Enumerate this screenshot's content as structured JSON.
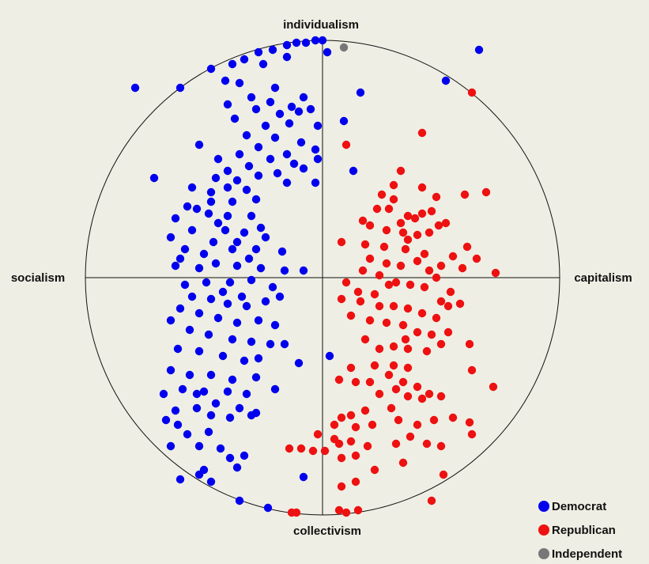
{
  "chart_data": {
    "type": "scatter",
    "title": "",
    "axes": {
      "top": "individualism",
      "bottom": "collectivism",
      "left": "socialism",
      "right": "capitalism"
    },
    "xlim": [
      -1,
      1
    ],
    "ylim": [
      -1,
      1
    ],
    "boundary": "unit-circle",
    "grid": false,
    "legend_position": "bottom-right",
    "series": [
      {
        "name": "Democrat",
        "color": "#0000ee",
        "points": [
          [
            0.0,
            1.0
          ],
          [
            -0.03,
            1.0
          ],
          [
            -0.07,
            0.99
          ],
          [
            -0.11,
            0.99
          ],
          [
            -0.15,
            0.98
          ],
          [
            -0.21,
            0.96
          ],
          [
            -0.27,
            0.95
          ],
          [
            -0.33,
            0.92
          ],
          [
            -0.38,
            0.9
          ],
          [
            -0.47,
            0.88
          ],
          [
            -0.6,
            0.8
          ],
          [
            -0.79,
            0.8
          ],
          [
            -0.15,
            0.93
          ],
          [
            -0.25,
            0.9
          ],
          [
            -0.41,
            0.83
          ],
          [
            0.02,
            0.95
          ],
          [
            0.66,
            0.96
          ],
          [
            0.52,
            0.83
          ],
          [
            0.16,
            0.78
          ],
          [
            0.09,
            0.66
          ],
          [
            -0.35,
            0.82
          ],
          [
            -0.2,
            0.8
          ],
          [
            -0.3,
            0.76
          ],
          [
            -0.22,
            0.74
          ],
          [
            -0.13,
            0.72
          ],
          [
            -0.08,
            0.76
          ],
          [
            -0.1,
            0.7
          ],
          [
            -0.18,
            0.69
          ],
          [
            -0.28,
            0.71
          ],
          [
            -0.4,
            0.73
          ],
          [
            -0.05,
            0.71
          ],
          [
            -0.02,
            0.64
          ],
          [
            -0.14,
            0.65
          ],
          [
            -0.24,
            0.64
          ],
          [
            -0.37,
            0.67
          ],
          [
            -0.32,
            0.6
          ],
          [
            -0.2,
            0.59
          ],
          [
            -0.09,
            0.57
          ],
          [
            -0.03,
            0.54
          ],
          [
            -0.27,
            0.55
          ],
          [
            -0.35,
            0.52
          ],
          [
            -0.44,
            0.5
          ],
          [
            -0.52,
            0.56
          ],
          [
            -0.15,
            0.52
          ],
          [
            -0.22,
            0.5
          ],
          [
            -0.31,
            0.47
          ],
          [
            -0.4,
            0.45
          ],
          [
            -0.12,
            0.48
          ],
          [
            -0.02,
            0.5
          ],
          [
            -0.08,
            0.46
          ],
          [
            -0.19,
            0.44
          ],
          [
            -0.27,
            0.43
          ],
          [
            -0.36,
            0.41
          ],
          [
            -0.45,
            0.42
          ],
          [
            -0.03,
            0.4
          ],
          [
            -0.15,
            0.4
          ],
          [
            0.13,
            0.45
          ],
          [
            -0.71,
            0.42
          ],
          [
            -0.55,
            0.38
          ],
          [
            -0.4,
            0.38
          ],
          [
            -0.32,
            0.37
          ],
          [
            -0.47,
            0.36
          ],
          [
            -0.28,
            0.33
          ],
          [
            -0.38,
            0.32
          ],
          [
            -0.47,
            0.32
          ],
          [
            -0.57,
            0.3
          ],
          [
            -0.62,
            0.25
          ],
          [
            -0.48,
            0.27
          ],
          [
            -0.4,
            0.26
          ],
          [
            -0.3,
            0.26
          ],
          [
            -0.55,
            0.2
          ],
          [
            -0.41,
            0.2
          ],
          [
            -0.33,
            0.19
          ],
          [
            -0.24,
            0.17
          ],
          [
            -0.46,
            0.15
          ],
          [
            -0.58,
            0.12
          ],
          [
            -0.5,
            0.1
          ],
          [
            -0.38,
            0.12
          ],
          [
            -0.28,
            0.12
          ],
          [
            -0.17,
            0.11
          ],
          [
            -0.62,
            0.05
          ],
          [
            -0.52,
            0.04
          ],
          [
            -0.45,
            0.06
          ],
          [
            -0.36,
            0.05
          ],
          [
            -0.26,
            0.04
          ],
          [
            -0.16,
            0.03
          ],
          [
            -0.08,
            0.03
          ],
          [
            -0.58,
            -0.03
          ],
          [
            -0.49,
            -0.02
          ],
          [
            -0.39,
            -0.02
          ],
          [
            -0.3,
            -0.01
          ],
          [
            -0.21,
            -0.04
          ],
          [
            -0.64,
            0.17
          ],
          [
            -0.6,
            0.08
          ],
          [
            -0.53,
            0.29
          ],
          [
            -0.44,
            0.23
          ],
          [
            -0.36,
            0.15
          ],
          [
            -0.31,
            0.08
          ],
          [
            -0.26,
            0.21
          ],
          [
            -0.42,
            -0.06
          ],
          [
            -0.34,
            -0.08
          ],
          [
            -0.55,
            -0.08
          ],
          [
            -0.47,
            -0.09
          ],
          [
            -0.4,
            -0.11
          ],
          [
            -0.32,
            -0.12
          ],
          [
            -0.24,
            -0.1
          ],
          [
            -0.18,
            -0.08
          ],
          [
            -0.6,
            -0.13
          ],
          [
            -0.52,
            -0.15
          ],
          [
            -0.44,
            -0.17
          ],
          [
            -0.36,
            -0.19
          ],
          [
            -0.27,
            -0.18
          ],
          [
            -0.2,
            -0.2
          ],
          [
            -0.64,
            -0.18
          ],
          [
            -0.56,
            -0.22
          ],
          [
            -0.48,
            -0.24
          ],
          [
            -0.38,
            -0.26
          ],
          [
            -0.3,
            -0.27
          ],
          [
            -0.22,
            -0.28
          ],
          [
            -0.61,
            -0.3
          ],
          [
            -0.52,
            -0.31
          ],
          [
            -0.42,
            -0.33
          ],
          [
            -0.33,
            -0.35
          ],
          [
            -0.27,
            -0.34
          ],
          [
            -0.64,
            -0.39
          ],
          [
            -0.56,
            -0.41
          ],
          [
            -0.47,
            -0.41
          ],
          [
            -0.38,
            -0.43
          ],
          [
            -0.28,
            -0.42
          ],
          [
            -0.59,
            -0.47
          ],
          [
            -0.5,
            -0.48
          ],
          [
            -0.4,
            -0.48
          ],
          [
            -0.32,
            -0.49
          ],
          [
            -0.2,
            -0.47
          ],
          [
            -0.1,
            -0.36
          ],
          [
            -0.16,
            -0.28
          ],
          [
            -0.62,
            -0.56
          ],
          [
            -0.53,
            -0.55
          ],
          [
            -0.45,
            -0.53
          ],
          [
            -0.35,
            -0.55
          ],
          [
            -0.57,
            -0.66
          ],
          [
            -0.48,
            -0.65
          ],
          [
            -0.39,
            -0.59
          ],
          [
            -0.67,
            -0.49
          ],
          [
            -0.61,
            -0.62
          ],
          [
            -0.52,
            -0.71
          ],
          [
            -0.43,
            -0.72
          ],
          [
            -0.66,
            -0.6
          ],
          [
            -0.64,
            -0.71
          ],
          [
            -0.52,
            -0.83
          ],
          [
            -0.47,
            -0.86
          ],
          [
            -0.39,
            -0.76
          ],
          [
            -0.36,
            -0.8
          ],
          [
            -0.33,
            -0.75
          ],
          [
            -0.6,
            -0.85
          ],
          [
            -0.5,
            -0.81
          ],
          [
            -0.35,
            -0.94
          ],
          [
            -0.23,
            -0.97
          ],
          [
            -0.08,
            -0.84
          ],
          [
            0.03,
            -0.33
          ],
          [
            -0.28,
            -0.57
          ],
          [
            -0.3,
            -0.58
          ],
          [
            -0.53,
            -0.49
          ],
          [
            -0.47,
            -0.58
          ]
        ]
      },
      {
        "name": "Republican",
        "color": "#ee1111",
        "points": [
          [
            0.63,
            0.78
          ],
          [
            0.42,
            0.61
          ],
          [
            0.33,
            0.45
          ],
          [
            0.3,
            0.39
          ],
          [
            0.42,
            0.38
          ],
          [
            0.6,
            0.35
          ],
          [
            0.69,
            0.36
          ],
          [
            0.25,
            0.35
          ],
          [
            0.3,
            0.33
          ],
          [
            0.23,
            0.29
          ],
          [
            0.36,
            0.26
          ],
          [
            0.39,
            0.25
          ],
          [
            0.45,
            0.19
          ],
          [
            0.49,
            0.22
          ],
          [
            0.33,
            0.23
          ],
          [
            0.17,
            0.24
          ],
          [
            0.2,
            0.22
          ],
          [
            0.27,
            0.2
          ],
          [
            0.34,
            0.19
          ],
          [
            0.4,
            0.18
          ],
          [
            0.46,
            0.28
          ],
          [
            0.52,
            0.23
          ],
          [
            0.48,
            0.34
          ],
          [
            0.08,
            0.15
          ],
          [
            0.18,
            0.14
          ],
          [
            0.26,
            0.13
          ],
          [
            0.35,
            0.12
          ],
          [
            0.43,
            0.1
          ],
          [
            0.5,
            0.05
          ],
          [
            0.55,
            0.09
          ],
          [
            0.61,
            0.13
          ],
          [
            0.65,
            0.08
          ],
          [
            0.59,
            0.04
          ],
          [
            0.2,
            0.08
          ],
          [
            0.27,
            0.06
          ],
          [
            0.33,
            0.05
          ],
          [
            0.4,
            0.07
          ],
          [
            0.45,
            0.03
          ],
          [
            0.17,
            0.03
          ],
          [
            0.24,
            0.01
          ],
          [
            0.31,
            -0.02
          ],
          [
            0.37,
            -0.03
          ],
          [
            0.43,
            -0.04
          ],
          [
            0.48,
            0.0
          ],
          [
            0.54,
            -0.06
          ],
          [
            0.73,
            0.02
          ],
          [
            0.28,
            -0.03
          ],
          [
            0.22,
            -0.07
          ],
          [
            0.15,
            -0.06
          ],
          [
            0.1,
            -0.02
          ],
          [
            0.08,
            -0.09
          ],
          [
            0.16,
            -0.1
          ],
          [
            0.24,
            -0.12
          ],
          [
            0.3,
            -0.12
          ],
          [
            0.36,
            -0.13
          ],
          [
            0.42,
            -0.15
          ],
          [
            0.48,
            -0.17
          ],
          [
            0.53,
            -0.12
          ],
          [
            0.58,
            -0.11
          ],
          [
            0.5,
            -0.1
          ],
          [
            0.12,
            -0.16
          ],
          [
            0.2,
            -0.18
          ],
          [
            0.27,
            -0.19
          ],
          [
            0.34,
            -0.2
          ],
          [
            0.4,
            -0.23
          ],
          [
            0.46,
            -0.24
          ],
          [
            0.53,
            -0.23
          ],
          [
            0.62,
            -0.28
          ],
          [
            0.18,
            -0.26
          ],
          [
            0.24,
            -0.3
          ],
          [
            0.3,
            -0.29
          ],
          [
            0.36,
            -0.3
          ],
          [
            0.44,
            -0.31
          ],
          [
            0.22,
            -0.37
          ],
          [
            0.3,
            -0.37
          ],
          [
            0.36,
            -0.38
          ],
          [
            0.12,
            -0.38
          ],
          [
            0.07,
            -0.43
          ],
          [
            0.14,
            -0.44
          ],
          [
            0.2,
            -0.44
          ],
          [
            0.28,
            -0.41
          ],
          [
            0.34,
            -0.44
          ],
          [
            0.4,
            -0.46
          ],
          [
            0.45,
            -0.49
          ],
          [
            0.24,
            -0.49
          ],
          [
            0.31,
            -0.47
          ],
          [
            0.36,
            -0.5
          ],
          [
            0.42,
            -0.51
          ],
          [
            0.5,
            -0.5
          ],
          [
            0.29,
            -0.55
          ],
          [
            0.18,
            -0.56
          ],
          [
            0.12,
            -0.58
          ],
          [
            0.08,
            -0.59
          ],
          [
            0.05,
            -0.62
          ],
          [
            0.14,
            -0.63
          ],
          [
            0.21,
            -0.62
          ],
          [
            0.32,
            -0.6
          ],
          [
            0.4,
            -0.62
          ],
          [
            0.47,
            -0.6
          ],
          [
            0.55,
            -0.59
          ],
          [
            0.05,
            -0.68
          ],
          [
            -0.02,
            -0.66
          ],
          [
            0.07,
            -0.7
          ],
          [
            0.12,
            -0.69
          ],
          [
            -0.04,
            -0.73
          ],
          [
            0.01,
            -0.73
          ],
          [
            0.19,
            -0.71
          ],
          [
            0.31,
            -0.7
          ],
          [
            0.37,
            -0.67
          ],
          [
            0.44,
            -0.7
          ],
          [
            0.5,
            -0.71
          ],
          [
            -0.09,
            -0.72
          ],
          [
            -0.14,
            -0.72
          ],
          [
            0.08,
            -0.76
          ],
          [
            0.14,
            -0.75
          ],
          [
            0.22,
            -0.81
          ],
          [
            0.34,
            -0.78
          ],
          [
            0.51,
            -0.83
          ],
          [
            0.62,
            -0.61
          ],
          [
            0.63,
            -0.66
          ],
          [
            0.72,
            -0.46
          ],
          [
            0.63,
            -0.39
          ],
          [
            0.36,
            0.16
          ],
          [
            0.5,
            -0.28
          ],
          [
            0.35,
            -0.26
          ],
          [
            -0.13,
            -0.99
          ],
          [
            -0.11,
            -0.99
          ],
          [
            0.07,
            -0.98
          ],
          [
            0.1,
            -0.99
          ],
          [
            0.15,
            -0.98
          ],
          [
            0.46,
            -0.94
          ],
          [
            0.14,
            -0.86
          ],
          [
            0.08,
            -0.88
          ],
          [
            0.1,
            0.56
          ],
          [
            0.42,
            0.27
          ],
          [
            0.28,
            0.29
          ]
        ]
      },
      {
        "name": "Independent",
        "color": "#777777",
        "points": [
          [
            0.09,
            0.97
          ]
        ]
      }
    ]
  }
}
